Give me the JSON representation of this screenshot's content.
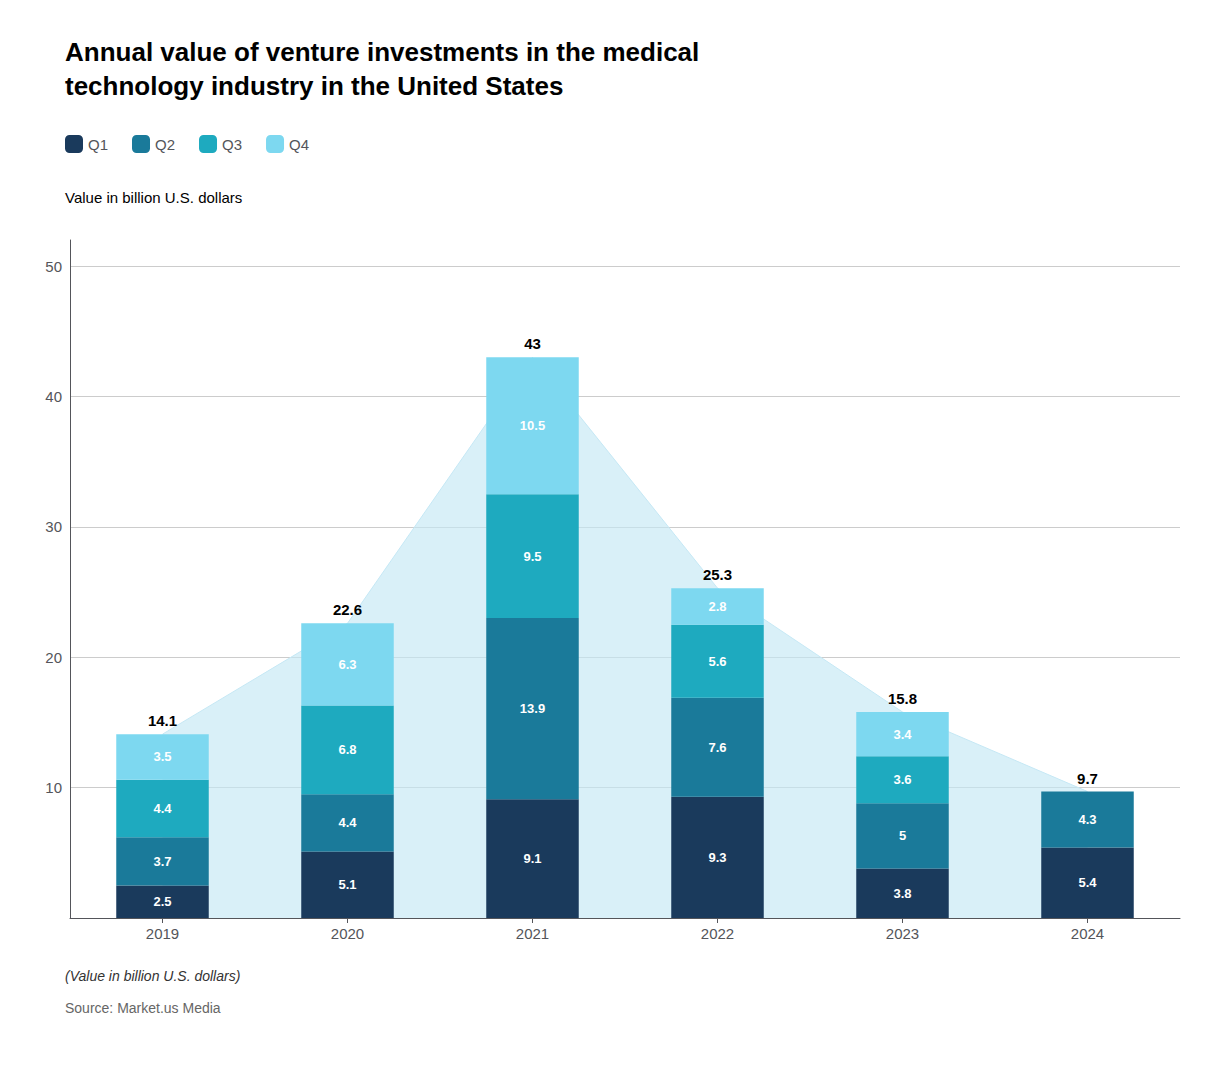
{
  "chart_data": {
    "type": "bar",
    "stacked": true,
    "title": "Annual value of venture investments in the medical\ntechnology industry in the United States",
    "subtitle": "Value in billion U.S. dollars",
    "annotations": [
      "(Value in billion U.S. dollars)",
      "Source: Market.us Media"
    ],
    "categories": [
      "2019",
      "2020",
      "2021",
      "2022",
      "2023",
      "2024"
    ],
    "series": [
      {
        "name": "Q1",
        "color": "#1a3a5c",
        "values": [
          2.5,
          5.1,
          9.1,
          9.3,
          3.8,
          5.4
        ]
      },
      {
        "name": "Q2",
        "color": "#1a7a9a",
        "values": [
          3.7,
          4.4,
          13.9,
          7.6,
          5.0,
          4.3
        ]
      },
      {
        "name": "Q3",
        "color": "#1eaabf",
        "values": [
          4.4,
          6.8,
          9.5,
          5.6,
          3.6,
          0.0
        ]
      },
      {
        "name": "Q4",
        "color": "#7dd8f0",
        "values": [
          3.5,
          6.3,
          10.5,
          2.8,
          3.4,
          0.0
        ]
      }
    ],
    "totals": {
      "values": [
        14.1,
        22.6,
        43.0,
        25.3,
        15.8,
        9.7
      ],
      "value_labels": [
        "14.1",
        "22.6",
        "43",
        "25.3",
        "15.8",
        "9.7"
      ],
      "color": "#c5e8f5"
    },
    "data_labels": true,
    "legend": "upper left",
    "ylim": [
      0,
      52
    ],
    "yticks": [
      10,
      20,
      30,
      40,
      50
    ],
    "grid": true
  }
}
